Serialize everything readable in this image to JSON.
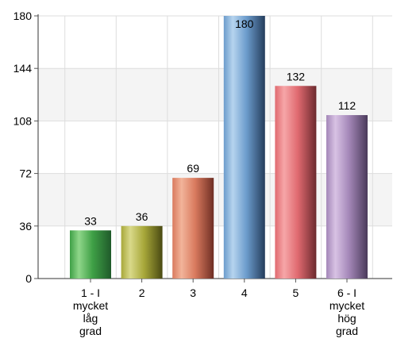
{
  "chart_data": {
    "type": "bar",
    "categories": [
      [
        "1 - I",
        "mycket",
        "låg",
        "grad"
      ],
      [
        "2"
      ],
      [
        "3"
      ],
      [
        "4"
      ],
      [
        "5"
      ],
      [
        "6 - I",
        "mycket",
        "hög",
        "grad"
      ]
    ],
    "values": [
      33,
      36,
      69,
      180,
      132,
      112
    ],
    "data_labels": [
      "33",
      "36",
      "69",
      "180",
      "132",
      "112"
    ],
    "ylim": [
      0,
      180
    ],
    "yticks": [
      0,
      36,
      72,
      108,
      144,
      180
    ],
    "ytick_labels": [
      "0",
      "36",
      "72",
      "108",
      "144",
      "180"
    ],
    "grid": true,
    "bar_colors": [
      [
        "#8fd68a",
        "#3fa046",
        "#1f5a2a"
      ],
      [
        "#d9d98a",
        "#a8a83a",
        "#4a4a12"
      ],
      [
        "#f2b49a",
        "#d97a5e",
        "#6e2e24"
      ],
      [
        "#b6d4ee",
        "#6c9ccc",
        "#243c5c"
      ],
      [
        "#f6a6a8",
        "#e06a70",
        "#6c2a2e"
      ],
      [
        "#d8c2e4",
        "#a487b8",
        "#4a3a5a"
      ]
    ]
  }
}
